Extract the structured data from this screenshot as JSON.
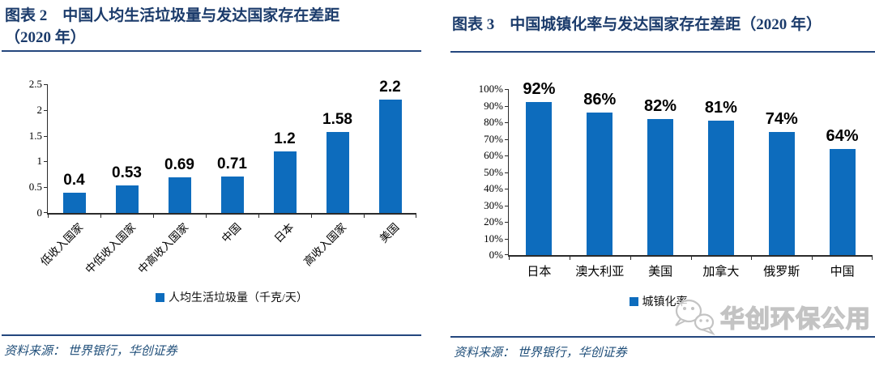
{
  "page": {
    "background": "#FFFFFF",
    "title_color": "#1B3B6B",
    "rule_color": "#24477E",
    "source_color": "#1F4E79",
    "bar_color": "#0D6CBD",
    "axis_color": "#2B2B2B",
    "label_color": "#000000",
    "watermark_gray": "#C3C3C3"
  },
  "left_figure": {
    "title_line1": "图表 2　中国人均生活垃圾量与发达国家存在差距",
    "title_line2": "（2020 年）",
    "legend_label": "人均生活垃圾量（千克/天）",
    "source_prefix": "资料来源：",
    "source_text": "世界银行，华创证券"
  },
  "right_figure": {
    "title": "图表 3　中国城镇化率与发达国家存在差距（2020 年）",
    "legend_label": "城镇化率",
    "source_prefix": "资料来源：",
    "source_text": "世界银行，华创证券",
    "watermark_icon": "wechat-icon",
    "watermark_text": "华创环保公用"
  },
  "chart_data": [
    {
      "type": "bar",
      "title": "图表 2 中国人均生活垃圾量与发达国家存在差距（2020 年）",
      "categories": [
        "低收入国家",
        "中低收入国家",
        "中高收入国家",
        "中国",
        "日本",
        "高收入国家",
        "美国"
      ],
      "values": [
        0.4,
        0.53,
        0.69,
        0.71,
        1.2,
        1.58,
        2.2
      ],
      "value_labels": [
        "0.4",
        "0.53",
        "0.69",
        "0.71",
        "1.2",
        "1.58",
        "2.2"
      ],
      "xlabel": "",
      "ylabel": "",
      "ylim": [
        0,
        2.5
      ],
      "yticks": [
        "0",
        "0.5",
        "1",
        "1.5",
        "2",
        "2.5"
      ],
      "grid": false,
      "legend": "人均生活垃圾量（千克/天）",
      "legend_position": "bottom",
      "bar_color": "#0D6CBD"
    },
    {
      "type": "bar",
      "title": "图表 3 中国城镇化率与发达国家存在差距（2020 年）",
      "categories": [
        "日本",
        "澳大利亚",
        "美国",
        "加拿大",
        "俄罗斯",
        "中国"
      ],
      "values": [
        92,
        86,
        82,
        81,
        74,
        64
      ],
      "value_labels": [
        "92%",
        "86%",
        "82%",
        "81%",
        "74%",
        "64%"
      ],
      "xlabel": "",
      "ylabel": "",
      "ylim": [
        0,
        100
      ],
      "yticks": [
        "0%",
        "10%",
        "20%",
        "30%",
        "40%",
        "50%",
        "60%",
        "70%",
        "80%",
        "90%",
        "100%"
      ],
      "grid": false,
      "legend": "城镇化率",
      "legend_position": "bottom",
      "bar_color": "#0D6CBD"
    }
  ]
}
